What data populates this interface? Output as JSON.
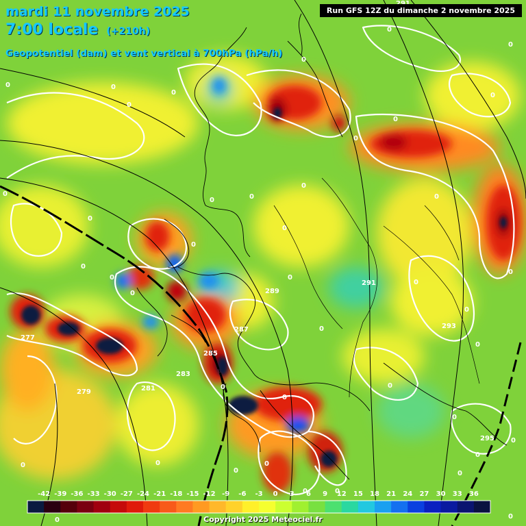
{
  "header": {
    "title_line1": "mardi 11 novembre 2025",
    "title_line2": "7:00 locale",
    "lead_time": "(+210h)",
    "subtitle": "Geopotentiel (dam) et vent vertical à 700hPa (hPa/h)",
    "run_info": "Run GFS 12Z du dimanche 2 novembre 2025"
  },
  "geopotential_labels": [
    "277",
    "279",
    "281",
    "283",
    "285",
    "287",
    "289",
    "291",
    "293",
    "295"
  ],
  "contour_zero_label": "0",
  "colorbar": {
    "ticks": [
      "-42",
      "-39",
      "-36",
      "-33",
      "-30",
      "-27",
      "-24",
      "-21",
      "-18",
      "-15",
      "-12",
      "-9",
      "-6",
      "-3",
      "0",
      "3",
      "6",
      "9",
      "12",
      "15",
      "18",
      "21",
      "24",
      "27",
      "30",
      "33",
      "36"
    ],
    "colors": [
      "#0a1a40",
      "#2a0010",
      "#55000a",
      "#7a0010",
      "#a0000f",
      "#c50a0a",
      "#e01a0a",
      "#f03a10",
      "#f85a1a",
      "#ff7a22",
      "#ff9a22",
      "#ffb82a",
      "#ffd22a",
      "#fff02a",
      "#f5ff30",
      "#ccff30",
      "#a0f030",
      "#78e040",
      "#4ce070",
      "#2ad8a0",
      "#22c8e0",
      "#1aa0f0",
      "#1470f0",
      "#0a40e0",
      "#0a20c0",
      "#0a1aa0",
      "#0a1470",
      "#0a1240"
    ]
  },
  "copyright": "Copyright 2025 Meteociel.fr"
}
